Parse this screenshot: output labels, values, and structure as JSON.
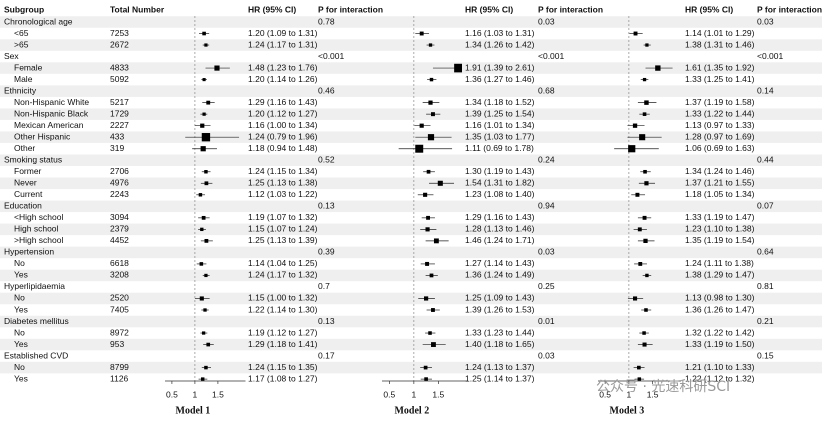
{
  "chart_data": {
    "type": "forest",
    "headers": {
      "subgroup": "Subgroup",
      "total": "Total Number"
    },
    "reference_line": 1,
    "watermark": "公众号 · 光速科研SCI",
    "panels": [
      {
        "name": "Model 1",
        "hr_header": "HR (95% CI)",
        "p_header": "P for interaction",
        "xlim": [
          0.35,
          2.1
        ],
        "xticks": [
          0.5,
          1,
          1.5
        ]
      },
      {
        "name": "Model 2",
        "hr_header": "HR (95% CI)",
        "p_header": "P for interaction",
        "xlim": [
          0.35,
          2.1
        ],
        "xticks": [
          0.5,
          1,
          1.5
        ]
      },
      {
        "name": "Model 3",
        "hr_header": "HR (95% CI)",
        "p_header": "P for interaction",
        "xlim": [
          0.35,
          2.1
        ],
        "xticks": [
          0.5,
          1,
          1.5
        ]
      }
    ],
    "rows": [
      {
        "label": "Chronological age",
        "p": [
          0.78,
          0.03,
          0.03
        ]
      },
      {
        "label": "<65",
        "total": 7253,
        "models": [
          {
            "hr": 1.2,
            "lo": 1.09,
            "hi": 1.31,
            "text": "1.20 (1.09 to 1.31)"
          },
          {
            "hr": 1.16,
            "lo": 1.03,
            "hi": 1.31,
            "text": "1.16 (1.03 to 1.31)"
          },
          {
            "hr": 1.14,
            "lo": 1.01,
            "hi": 1.29,
            "text": "1.14 (1.01 to 1.29)"
          }
        ]
      },
      {
        "label": ">65",
        "total": 2672,
        "models": [
          {
            "hr": 1.24,
            "lo": 1.17,
            "hi": 1.31,
            "text": "1.24 (1.17 to 1.31)"
          },
          {
            "hr": 1.34,
            "lo": 1.26,
            "hi": 1.42,
            "text": "1.34 (1.26 to 1.42)"
          },
          {
            "hr": 1.38,
            "lo": 1.31,
            "hi": 1.46,
            "text": "1.38 (1.31 to 1.46)"
          }
        ]
      },
      {
        "label": "Sex",
        "p": [
          "<0.001",
          "<0.001",
          "<0.001"
        ]
      },
      {
        "label": "Female",
        "total": 4833,
        "models": [
          {
            "hr": 1.48,
            "lo": 1.23,
            "hi": 1.76,
            "text": "1.48 (1.23 to 1.76)"
          },
          {
            "hr": 1.91,
            "lo": 1.39,
            "hi": 2.61,
            "text": "1.91 (1.39 to 2.61)"
          },
          {
            "hr": 1.61,
            "lo": 1.35,
            "hi": 1.92,
            "text": "1.61 (1.35 to 1.92)"
          }
        ]
      },
      {
        "label": "Male",
        "total": 5092,
        "models": [
          {
            "hr": 1.2,
            "lo": 1.14,
            "hi": 1.26,
            "text": "1.20 (1.14 to 1.26)"
          },
          {
            "hr": 1.36,
            "lo": 1.27,
            "hi": 1.46,
            "text": "1.36 (1.27 to 1.46)"
          },
          {
            "hr": 1.33,
            "lo": 1.25,
            "hi": 1.41,
            "text": "1.33 (1.25 to 1.41)"
          }
        ]
      },
      {
        "label": "Ethnicity",
        "p": [
          0.46,
          0.68,
          0.14
        ]
      },
      {
        "label": "Non-Hispanic White",
        "total": 5217,
        "models": [
          {
            "hr": 1.29,
            "lo": 1.16,
            "hi": 1.43,
            "text": "1.29 (1.16 to 1.43)"
          },
          {
            "hr": 1.34,
            "lo": 1.18,
            "hi": 1.52,
            "text": "1.34 (1.18 to 1.52)"
          },
          {
            "hr": 1.37,
            "lo": 1.19,
            "hi": 1.58,
            "text": "1.37 (1.19 to 1.58)"
          }
        ]
      },
      {
        "label": "Non-Hispanic Black",
        "total": 1729,
        "models": [
          {
            "hr": 1.2,
            "lo": 1.12,
            "hi": 1.27,
            "text": "1.20 (1.12 to 1.27)"
          },
          {
            "hr": 1.39,
            "lo": 1.25,
            "hi": 1.54,
            "text": "1.39 (1.25 to 1.54)"
          },
          {
            "hr": 1.33,
            "lo": 1.22,
            "hi": 1.44,
            "text": "1.33 (1.22 to 1.44)"
          }
        ]
      },
      {
        "label": "Mexican American",
        "total": 2227,
        "models": [
          {
            "hr": 1.16,
            "lo": 1.0,
            "hi": 1.34,
            "text": "1.16 (1.00 to 1.34)"
          },
          {
            "hr": 1.16,
            "lo": 1.01,
            "hi": 1.34,
            "text": "1.16 (1.01 to 1.34)"
          },
          {
            "hr": 1.13,
            "lo": 0.97,
            "hi": 1.33,
            "text": "1.13 (0.97 to 1.33)"
          }
        ]
      },
      {
        "label": "Other Hispanic",
        "total": 433,
        "models": [
          {
            "hr": 1.24,
            "lo": 0.79,
            "hi": 1.96,
            "text": "1.24 (0.79 to 1.96)"
          },
          {
            "hr": 1.35,
            "lo": 1.03,
            "hi": 1.77,
            "text": "1.35 (1.03 to 1.77)"
          },
          {
            "hr": 1.28,
            "lo": 0.97,
            "hi": 1.69,
            "text": "1.28 (0.97 to 1.69)"
          }
        ]
      },
      {
        "label": "Other",
        "total": 319,
        "models": [
          {
            "hr": 1.18,
            "lo": 0.94,
            "hi": 1.48,
            "text": "1.18 (0.94 to 1.48)"
          },
          {
            "hr": 1.11,
            "lo": 0.69,
            "hi": 1.78,
            "text": "1.11 (0.69 to 1.78)"
          },
          {
            "hr": 1.06,
            "lo": 0.69,
            "hi": 1.63,
            "text": "1.06 (0.69 to 1.63)"
          }
        ]
      },
      {
        "label": "Smoking status",
        "p": [
          0.52,
          0.24,
          0.44
        ]
      },
      {
        "label": "Former",
        "total": 2706,
        "models": [
          {
            "hr": 1.24,
            "lo": 1.15,
            "hi": 1.34,
            "text": "1.24 (1.15 to 1.34)"
          },
          {
            "hr": 1.3,
            "lo": 1.19,
            "hi": 1.43,
            "text": "1.30 (1.19 to 1.43)"
          },
          {
            "hr": 1.34,
            "lo": 1.24,
            "hi": 1.46,
            "text": "1.34 (1.24 to 1.46)"
          }
        ]
      },
      {
        "label": "Never",
        "total": 4976,
        "models": [
          {
            "hr": 1.25,
            "lo": 1.13,
            "hi": 1.38,
            "text": "1.25 (1.13 to 1.38)"
          },
          {
            "hr": 1.54,
            "lo": 1.31,
            "hi": 1.82,
            "text": "1.54 (1.31 to 1.82)"
          },
          {
            "hr": 1.37,
            "lo": 1.21,
            "hi": 1.55,
            "text": "1.37 (1.21 to 1.55)"
          }
        ]
      },
      {
        "label": "Current",
        "total": 2243,
        "models": [
          {
            "hr": 1.12,
            "lo": 1.03,
            "hi": 1.22,
            "text": "1.12 (1.03 to 1.22)"
          },
          {
            "hr": 1.23,
            "lo": 1.08,
            "hi": 1.4,
            "text": "1.23 (1.08 to 1.40)"
          },
          {
            "hr": 1.18,
            "lo": 1.05,
            "hi": 1.34,
            "text": "1.18 (1.05 to 1.34)"
          }
        ]
      },
      {
        "label": "Education",
        "p": [
          0.13,
          0.94,
          0.07
        ]
      },
      {
        "label": "<High school",
        "total": 3094,
        "models": [
          {
            "hr": 1.19,
            "lo": 1.07,
            "hi": 1.32,
            "text": "1.19 (1.07 to 1.32)"
          },
          {
            "hr": 1.29,
            "lo": 1.16,
            "hi": 1.43,
            "text": "1.29 (1.16 to 1.43)"
          },
          {
            "hr": 1.33,
            "lo": 1.19,
            "hi": 1.47,
            "text": "1.33 (1.19 to 1.47)"
          }
        ]
      },
      {
        "label": "High school",
        "total": 2379,
        "models": [
          {
            "hr": 1.15,
            "lo": 1.07,
            "hi": 1.24,
            "text": "1.15 (1.07 to 1.24)"
          },
          {
            "hr": 1.28,
            "lo": 1.13,
            "hi": 1.46,
            "text": "1.28 (1.13 to 1.46)"
          },
          {
            "hr": 1.23,
            "lo": 1.1,
            "hi": 1.38,
            "text": "1.23 (1.10 to 1.38)"
          }
        ]
      },
      {
        "label": ">High school",
        "total": 4452,
        "models": [
          {
            "hr": 1.25,
            "lo": 1.13,
            "hi": 1.39,
            "text": "1.25 (1.13 to 1.39)"
          },
          {
            "hr": 1.46,
            "lo": 1.24,
            "hi": 1.71,
            "text": "1.46 (1.24 to 1.71)"
          },
          {
            "hr": 1.35,
            "lo": 1.19,
            "hi": 1.54,
            "text": "1.35 (1.19 to 1.54)"
          }
        ]
      },
      {
        "label": "Hypertension",
        "p": [
          0.39,
          0.03,
          0.64
        ]
      },
      {
        "label": "No",
        "total": 6618,
        "models": [
          {
            "hr": 1.14,
            "lo": 1.04,
            "hi": 1.25,
            "text": "1.14 (1.04 to 1.25)"
          },
          {
            "hr": 1.27,
            "lo": 1.14,
            "hi": 1.43,
            "text": "1.27 (1.14 to 1.43)"
          },
          {
            "hr": 1.24,
            "lo": 1.11,
            "hi": 1.38,
            "text": "1.24 (1.11 to 1.38)"
          }
        ]
      },
      {
        "label": "Yes",
        "total": 3208,
        "models": [
          {
            "hr": 1.24,
            "lo": 1.17,
            "hi": 1.32,
            "text": "1.24 (1.17 to 1.32)"
          },
          {
            "hr": 1.36,
            "lo": 1.24,
            "hi": 1.49,
            "text": "1.36 (1.24 to 1.49)"
          },
          {
            "hr": 1.38,
            "lo": 1.29,
            "hi": 1.47,
            "text": "1.38 (1.29 to 1.47)"
          }
        ]
      },
      {
        "label": "Hyperlipidaemia",
        "p": [
          0.7,
          0.25,
          0.81
        ]
      },
      {
        "label": "No",
        "total": 2520,
        "models": [
          {
            "hr": 1.15,
            "lo": 1.0,
            "hi": 1.32,
            "text": "1.15 (1.00 to 1.32)"
          },
          {
            "hr": 1.25,
            "lo": 1.09,
            "hi": 1.43,
            "text": "1.25 (1.09 to 1.43)"
          },
          {
            "hr": 1.13,
            "lo": 0.98,
            "hi": 1.3,
            "text": "1.13 (0.98 to 1.30)"
          }
        ]
      },
      {
        "label": "Yes",
        "total": 7405,
        "models": [
          {
            "hr": 1.22,
            "lo": 1.14,
            "hi": 1.3,
            "text": "1.22 (1.14 to 1.30)"
          },
          {
            "hr": 1.39,
            "lo": 1.26,
            "hi": 1.53,
            "text": "1.39 (1.26 to 1.53)"
          },
          {
            "hr": 1.36,
            "lo": 1.26,
            "hi": 1.47,
            "text": "1.36 (1.26 to 1.47)"
          }
        ]
      },
      {
        "label": "Diabetes mellitus",
        "p": [
          0.13,
          0.01,
          0.21
        ]
      },
      {
        "label": "No",
        "total": 8972,
        "models": [
          {
            "hr": 1.19,
            "lo": 1.12,
            "hi": 1.27,
            "text": "1.19 (1.12 to 1.27)"
          },
          {
            "hr": 1.33,
            "lo": 1.23,
            "hi": 1.44,
            "text": "1.33 (1.23 to 1.44)"
          },
          {
            "hr": 1.32,
            "lo": 1.22,
            "hi": 1.42,
            "text": "1.32 (1.22 to 1.42)"
          }
        ]
      },
      {
        "label": "Yes",
        "total": 953,
        "models": [
          {
            "hr": 1.29,
            "lo": 1.18,
            "hi": 1.41,
            "text": "1.29 (1.18 to 1.41)"
          },
          {
            "hr": 1.4,
            "lo": 1.18,
            "hi": 1.65,
            "text": "1.40 (1.18 to 1.65)"
          },
          {
            "hr": 1.33,
            "lo": 1.19,
            "hi": 1.5,
            "text": "1.33 (1.19 to 1.50)"
          }
        ]
      },
      {
        "label": "Established CVD",
        "p": [
          0.17,
          0.03,
          0.15
        ]
      },
      {
        "label": "No",
        "total": 8799,
        "models": [
          {
            "hr": 1.24,
            "lo": 1.15,
            "hi": 1.35,
            "text": "1.24 (1.15 to 1.35)"
          },
          {
            "hr": 1.24,
            "lo": 1.13,
            "hi": 1.37,
            "text": "1.24 (1.13 to 1.37)"
          },
          {
            "hr": 1.21,
            "lo": 1.1,
            "hi": 1.33,
            "text": "1.21 (1.10 to 1.33)"
          }
        ]
      },
      {
        "label": "Yes",
        "total": 1126,
        "models": [
          {
            "hr": 1.17,
            "lo": 1.08,
            "hi": 1.27,
            "text": "1.17 (1.08 to 1.27)"
          },
          {
            "hr": 1.25,
            "lo": 1.14,
            "hi": 1.37,
            "text": "1.25 (1.14 to 1.37)"
          },
          {
            "hr": 1.22,
            "lo": 1.12,
            "hi": 1.32,
            "text": "1.22 (1.12 to 1.32)"
          }
        ]
      }
    ]
  }
}
